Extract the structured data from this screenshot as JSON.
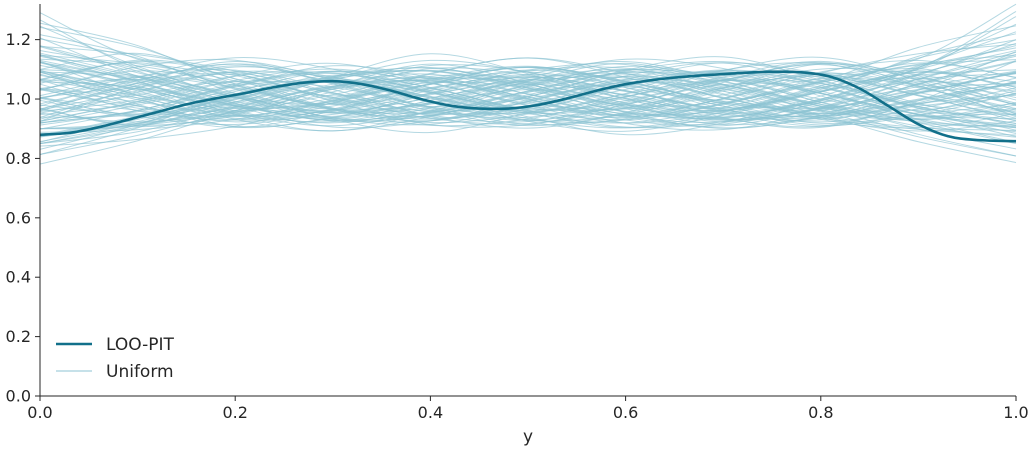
{
  "chart_data": {
    "type": "line",
    "title": "",
    "xlabel": "y",
    "ylabel": "",
    "xlim": [
      0.0,
      1.0
    ],
    "ylim": [
      0.0,
      1.32
    ],
    "xticks": [
      "0.0",
      "0.2",
      "0.4",
      "0.6",
      "0.8",
      "1.0"
    ],
    "yticks": [
      "0.0",
      "0.2",
      "0.4",
      "0.6",
      "0.8",
      "1.0",
      "1.2"
    ],
    "grid": false,
    "legend": {
      "placement": "lower-left",
      "entries": [
        {
          "label": "LOO-PIT",
          "color": "#12708a"
        },
        {
          "label": "Uniform",
          "color": "#8cc3d3"
        }
      ]
    },
    "series": [
      {
        "name": "LOO-PIT",
        "color": "#12708a",
        "x": [
          0.0,
          0.03,
          0.06,
          0.09,
          0.12,
          0.15,
          0.18,
          0.21,
          0.24,
          0.27,
          0.3,
          0.33,
          0.36,
          0.39,
          0.42,
          0.45,
          0.48,
          0.51,
          0.54,
          0.57,
          0.6,
          0.63,
          0.66,
          0.69,
          0.72,
          0.75,
          0.78,
          0.81,
          0.84,
          0.87,
          0.9,
          0.93,
          0.96,
          1.0
        ],
        "y": [
          0.88,
          0.886,
          0.905,
          0.93,
          0.956,
          0.982,
          1.002,
          1.02,
          1.04,
          1.055,
          1.06,
          1.05,
          1.028,
          1.0,
          0.978,
          0.968,
          0.968,
          0.98,
          1.002,
          1.028,
          1.05,
          1.065,
          1.075,
          1.082,
          1.088,
          1.092,
          1.09,
          1.075,
          1.035,
          0.975,
          0.915,
          0.875,
          0.862,
          0.858
        ]
      }
    ],
    "uniform_samples": {
      "name": "Uniform",
      "color": "#8cc3d3",
      "count": 100,
      "x": [
        0.0,
        0.1,
        0.2,
        0.3,
        0.4,
        0.5,
        0.6,
        0.7,
        0.8,
        0.9,
        1.0
      ],
      "band": [
        0.83,
        1.22
      ],
      "curves": [
        [
          1.22,
          1.15,
          1.04,
          0.98,
          1.02,
          1.07,
          1.03,
          0.96,
          0.93,
          1.02,
          1.1
        ],
        [
          0.81,
          0.88,
          0.97,
          1.05,
          1.08,
          1.02,
          0.95,
          0.93,
          1.0,
          1.1,
          1.23
        ],
        [
          1.15,
          1.07,
          0.97,
          0.92,
          0.98,
          1.06,
          1.1,
          1.04,
          0.96,
          0.92,
          0.95
        ],
        [
          0.86,
          0.94,
          1.04,
          1.08,
          1.03,
          0.96,
          0.93,
          0.98,
          1.06,
          1.12,
          1.29
        ],
        [
          1.08,
          1.02,
          0.95,
          0.91,
          0.96,
          1.04,
          1.1,
          1.07,
          0.99,
          0.92,
          0.85
        ],
        [
          0.95,
          1.05,
          1.12,
          1.08,
          1.0,
          0.94,
          0.96,
          1.04,
          1.1,
          1.05,
          0.98
        ],
        [
          1.12,
          1.0,
          0.92,
          0.95,
          1.04,
          1.1,
          1.05,
          0.97,
          0.92,
          0.97,
          1.05
        ],
        [
          0.9,
          0.97,
          1.05,
          1.1,
          1.07,
          0.99,
          0.93,
          0.95,
          1.03,
          1.15,
          1.22
        ],
        [
          1.02,
          1.09,
          1.05,
          0.97,
          0.93,
          0.98,
          1.06,
          1.1,
          1.03,
          0.95,
          0.9
        ],
        [
          0.98,
          0.93,
          0.96,
          1.05,
          1.12,
          1.06,
          0.97,
          0.92,
          0.96,
          1.06,
          1.13
        ],
        [
          1.05,
          1.11,
          1.07,
          0.99,
          0.94,
          0.96,
          1.03,
          1.08,
          1.04,
          0.96,
          0.92
        ],
        [
          0.88,
          0.92,
          1.0,
          1.07,
          1.09,
          1.03,
          0.96,
          0.94,
          1.0,
          1.08,
          1.18
        ],
        [
          1.1,
          1.04,
          0.98,
          0.96,
          1.01,
          1.07,
          1.08,
          1.01,
          0.94,
          0.9,
          0.88
        ],
        [
          0.94,
          1.01,
          1.08,
          1.06,
          0.99,
          0.93,
          0.95,
          1.02,
          1.09,
          1.07,
          1.0
        ],
        [
          1.03,
          0.96,
          0.93,
          0.98,
          1.06,
          1.11,
          1.06,
          0.98,
          0.94,
          0.99,
          1.07
        ],
        [
          0.97,
          1.04,
          1.1,
          1.05,
          0.97,
          0.92,
          0.96,
          1.05,
          1.11,
          1.04,
          0.95
        ],
        [
          1.07,
          1.12,
          1.04,
          0.95,
          0.91,
          0.97,
          1.05,
          1.09,
          1.02,
          0.94,
          0.93
        ],
        [
          0.92,
          0.98,
          1.06,
          1.1,
          1.04,
          0.97,
          0.94,
          0.99,
          1.07,
          1.13,
          1.16
        ],
        [
          1.0,
          0.94,
          0.98,
          1.06,
          1.1,
          1.03,
          0.95,
          0.93,
          0.99,
          1.06,
          1.08
        ],
        [
          1.13,
          1.05,
          0.96,
          0.93,
          0.99,
          1.07,
          1.09,
          1.02,
          0.95,
          0.91,
          0.9
        ],
        [
          0.85,
          0.91,
          0.99,
          1.06,
          1.08,
          1.02,
          0.96,
          0.97,
          1.04,
          1.1,
          1.12
        ],
        [
          1.06,
          1.0,
          0.95,
          0.97,
          1.03,
          1.08,
          1.04,
          0.97,
          0.95,
          1.01,
          1.04
        ],
        [
          0.96,
          1.06,
          1.1,
          1.02,
          0.95,
          0.95,
          1.01,
          1.07,
          1.06,
          0.98,
          0.94
        ],
        [
          1.01,
          0.97,
          0.94,
          1.0,
          1.07,
          1.05,
          0.98,
          0.95,
          1.0,
          1.06,
          1.03
        ]
      ]
    }
  }
}
